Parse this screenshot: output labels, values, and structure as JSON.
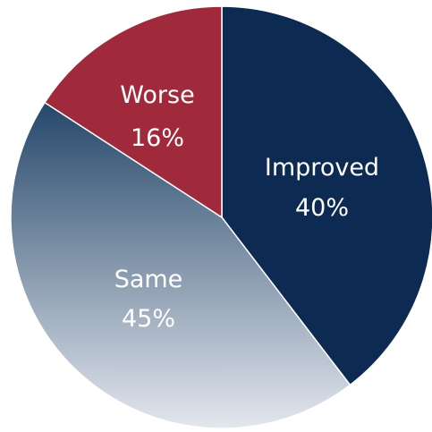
{
  "chart_data": {
    "type": "pie",
    "title": "",
    "slices": [
      {
        "label": "Improved",
        "value_label": "40%",
        "value": 40,
        "color": "#0d2a52"
      },
      {
        "label": "Same",
        "value_label": "45%",
        "value": 45,
        "gradient": [
          "#26476a",
          "#e3e7ee"
        ]
      },
      {
        "label": "Worse",
        "value_label": "16%",
        "value": 16,
        "color": "#a02a3b"
      }
    ],
    "start_angle_deg": 0,
    "direction": "clockwise",
    "legend": "none"
  }
}
